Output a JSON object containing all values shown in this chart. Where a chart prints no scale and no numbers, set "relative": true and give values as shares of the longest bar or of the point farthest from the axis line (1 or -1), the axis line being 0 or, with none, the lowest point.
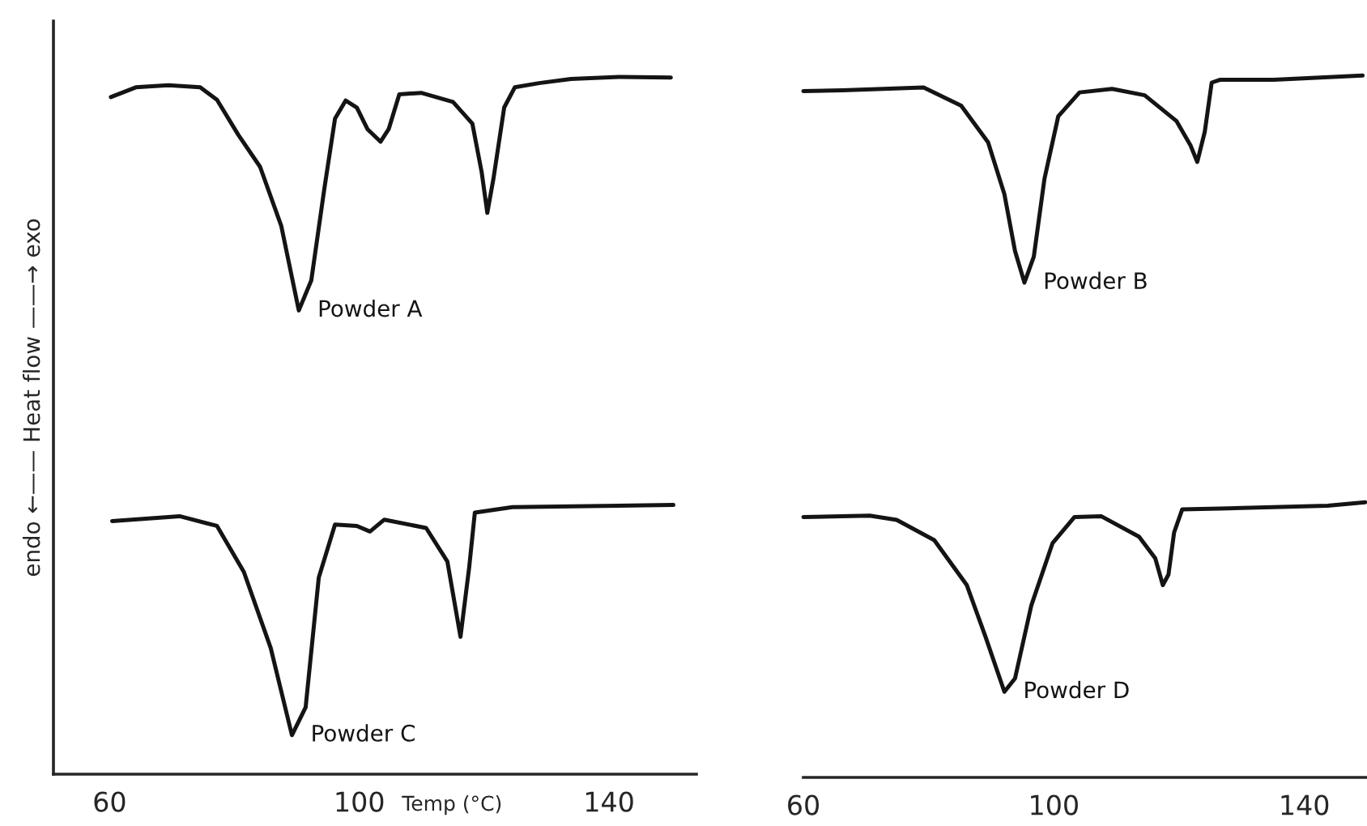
{
  "chart_data": [
    {
      "type": "line",
      "relative": true,
      "xlabel": "Temp (°C)",
      "ylabel": "endo ←—— Heat flow ——→ exo",
      "xlim": [
        51,
        154
      ],
      "xticks": [
        60,
        100,
        140
      ],
      "tick_labels": "x",
      "grid": false,
      "legend": false,
      "marker": "none",
      "line_style": "solid",
      "series": [
        {
          "name": "Powder A",
          "color": "#141414",
          "x": [
            60.2,
            64.2,
            69.4,
            74.5,
            77.2,
            80.6,
            84.1,
            87.5,
            90.3,
            92.3,
            94.4,
            96.1,
            97.8,
            99.6,
            101.3,
            103.4,
            104.7,
            106.4,
            109.9,
            115,
            118.1,
            119.6,
            120.5,
            121.5,
            123.2,
            124.9,
            128.8,
            133.9,
            141.7,
            149.9
          ],
          "values": [
            0.971,
            0.985,
            0.988,
            0.985,
            0.967,
            0.917,
            0.871,
            0.786,
            0.665,
            0.708,
            0.84,
            0.94,
            0.966,
            0.956,
            0.925,
            0.907,
            0.925,
            0.975,
            0.977,
            0.964,
            0.933,
            0.863,
            0.805,
            0.855,
            0.956,
            0.985,
            0.991,
            0.997,
            1.0,
            0.999
          ]
        },
        {
          "name": "Powder C",
          "color": "#141414",
          "x": [
            60.4,
            71.2,
            77.2,
            81.5,
            85.8,
            89.2,
            91.4,
            93.5,
            96.1,
            99.6,
            101.7,
            104,
            110.7,
            114.1,
            116.2,
            117.6,
            118.5,
            124.5,
            150.3
          ],
          "values": [
            0.363,
            0.37,
            0.356,
            0.29,
            0.181,
            0.056,
            0.096,
            0.282,
            0.358,
            0.356,
            0.348,
            0.365,
            0.353,
            0.305,
            0.197,
            0.297,
            0.375,
            0.383,
            0.386
          ]
        }
      ]
    },
    {
      "type": "line",
      "relative": true,
      "xlim": [
        60,
        150
      ],
      "xticks": [
        60,
        100,
        140
      ],
      "tick_labels": "x",
      "grid": false,
      "legend": false,
      "marker": "none",
      "line_style": "solid",
      "series": [
        {
          "name": "Powder B",
          "color": "#141414",
          "x": [
            60,
            66.3,
            79.2,
            85.2,
            89.5,
            92.1,
            93.8,
            95.3,
            96.8,
            98.5,
            100.7,
            104.1,
            109.3,
            114.5,
            119.6,
            121.8,
            122.9,
            124.1,
            125.2,
            126.5,
            135.1,
            149.3
          ],
          "values": [
            0.978,
            0.979,
            0.983,
            0.957,
            0.905,
            0.831,
            0.75,
            0.705,
            0.742,
            0.853,
            0.942,
            0.976,
            0.981,
            0.972,
            0.935,
            0.901,
            0.877,
            0.92,
            0.99,
            0.994,
            0.994,
            1.0
          ]
        },
        {
          "name": "Powder D",
          "color": "#141414",
          "x": [
            60,
            70.6,
            74.9,
            80.9,
            86.1,
            89.1,
            92.1,
            93.8,
            96.4,
            99.8,
            103.3,
            107.6,
            113.6,
            116.2,
            117.4,
            118.3,
            119.2,
            120.5,
            126.5,
            143.7,
            149.7
          ],
          "values": [
            0.371,
            0.373,
            0.367,
            0.338,
            0.274,
            0.2,
            0.122,
            0.141,
            0.245,
            0.334,
            0.371,
            0.372,
            0.343,
            0.312,
            0.274,
            0.289,
            0.349,
            0.382,
            0.383,
            0.387,
            0.392
          ]
        }
      ]
    }
  ]
}
